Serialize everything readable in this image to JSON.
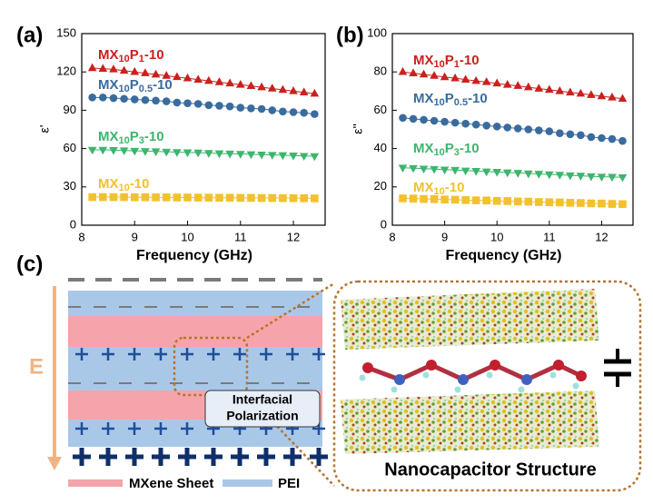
{
  "chart_data": [
    {
      "type": "line",
      "label": "(a)",
      "ylabel": "ε'",
      "xlabel": "Frequency (GHz)",
      "x": [
        8.2,
        8.4,
        8.6,
        8.8,
        9.0,
        9.2,
        9.4,
        9.6,
        9.8,
        10.0,
        10.2,
        10.4,
        10.6,
        10.8,
        11.0,
        11.2,
        11.4,
        11.6,
        11.8,
        12.0,
        12.2,
        12.4
      ],
      "xlim": [
        8,
        12.6
      ],
      "xticks": [
        8,
        9,
        10,
        11,
        12
      ],
      "ylim": [
        0,
        150
      ],
      "yticks": [
        0,
        30,
        60,
        90,
        120,
        150
      ],
      "series": [
        {
          "name": "MX10P1-10",
          "color": "#c9211e",
          "marker": "triangle-up",
          "values": [
            123,
            122.5,
            122,
            121,
            120,
            119,
            118,
            117,
            116,
            115,
            114,
            113,
            112,
            111,
            110,
            109,
            108,
            107,
            106,
            105,
            104,
            103
          ]
        },
        {
          "name": "MX10P0.5-10",
          "color": "#3a6b9e",
          "marker": "circle",
          "values": [
            100,
            100,
            99.5,
            99,
            98.5,
            98,
            97.5,
            97,
            96,
            95.5,
            95,
            94,
            93.5,
            93,
            92,
            91.5,
            91,
            90,
            89,
            88.5,
            88,
            87
          ]
        },
        {
          "name": "MX10P3-10",
          "color": "#3db56d",
          "marker": "triangle-down",
          "values": [
            59,
            59,
            58.8,
            58.5,
            58.2,
            58,
            57.8,
            57.5,
            57.2,
            57,
            56.8,
            56.5,
            56.2,
            56,
            55.8,
            55.5,
            55.2,
            55,
            54.8,
            54.5,
            54.2,
            54
          ]
        },
        {
          "name": "MX10-10",
          "color": "#f2c12e",
          "marker": "square",
          "values": [
            22,
            22,
            22,
            22,
            21.9,
            21.9,
            21.8,
            21.8,
            21.7,
            21.7,
            21.6,
            21.6,
            21.5,
            21.5,
            21.4,
            21.4,
            21.3,
            21.3,
            21.2,
            21.2,
            21.1,
            21
          ]
        }
      ]
    },
    {
      "type": "line",
      "label": "(b)",
      "ylabel": "ε''",
      "xlabel": "Frequency (GHz)",
      "x": [
        8.2,
        8.4,
        8.6,
        8.8,
        9.0,
        9.2,
        9.4,
        9.6,
        9.8,
        10.0,
        10.2,
        10.4,
        10.6,
        10.8,
        11.0,
        11.2,
        11.4,
        11.6,
        11.8,
        12.0,
        12.2,
        12.4
      ],
      "xlim": [
        8,
        12.6
      ],
      "xticks": [
        8,
        9,
        10,
        11,
        12
      ],
      "ylim": [
        0,
        100
      ],
      "yticks": [
        0,
        20,
        40,
        60,
        80,
        100
      ],
      "series": [
        {
          "name": "MX10P1-10",
          "color": "#c9211e",
          "marker": "triangle-up",
          "values": [
            80,
            79.3,
            78.7,
            78,
            77.3,
            76.7,
            76,
            75.3,
            74.7,
            74,
            73.3,
            72.7,
            72,
            71.3,
            70.7,
            70,
            69.3,
            68.7,
            68,
            67.3,
            66.7,
            66
          ]
        },
        {
          "name": "MX10P0.5-10",
          "color": "#3a6b9e",
          "marker": "circle",
          "values": [
            56,
            55.5,
            55,
            54.5,
            54,
            53.5,
            53,
            52.5,
            52,
            51.5,
            51,
            50.5,
            50,
            49.5,
            49,
            48,
            47.5,
            47,
            46,
            45.5,
            45,
            44
          ]
        },
        {
          "name": "MX10P3-10",
          "color": "#3db56d",
          "marker": "triangle-down",
          "values": [
            30,
            29.8,
            29.5,
            29.3,
            29,
            28.8,
            28.5,
            28.3,
            28,
            27.8,
            27.5,
            27.3,
            27,
            26.8,
            26.5,
            26.3,
            26,
            25.8,
            25.5,
            25.3,
            25.2,
            25
          ]
        },
        {
          "name": "MX10-10",
          "color": "#f2c12e",
          "marker": "square",
          "values": [
            14,
            13.9,
            13.7,
            13.6,
            13.4,
            13.3,
            13.1,
            13,
            12.9,
            12.7,
            12.6,
            12.4,
            12.3,
            12.1,
            12,
            11.9,
            11.7,
            11.6,
            11.4,
            11.3,
            11.1,
            11
          ]
        }
      ]
    }
  ],
  "diagram": {
    "label": "(c)",
    "field": "E",
    "callout": [
      "Interfacial",
      "Polarization"
    ],
    "legend": [
      "MXene Sheet",
      "PEI"
    ],
    "caption": "Nanocapacitor Structure"
  }
}
